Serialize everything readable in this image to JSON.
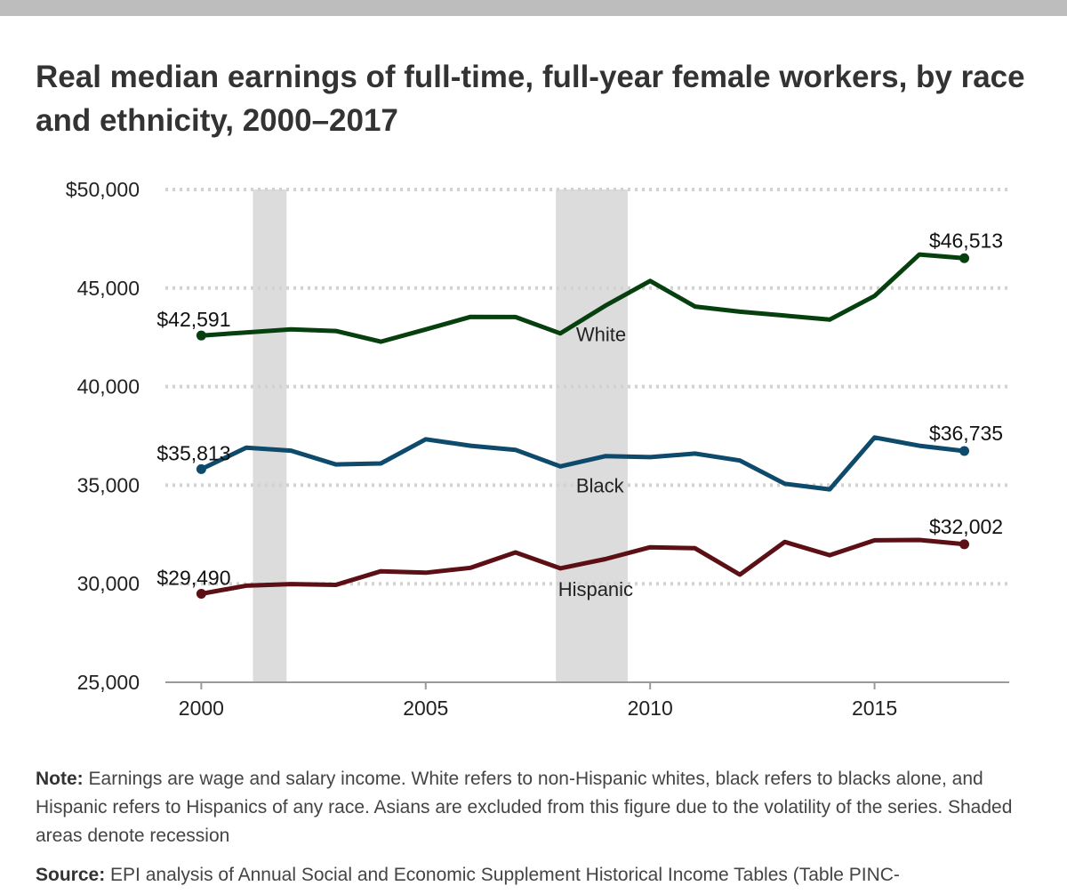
{
  "title": "Real median earnings of full-time, full-year female workers, by race and ethnicity, 2000–2017",
  "note": {
    "label": "Note:",
    "text": "Earnings are wage and salary income. White refers to non-Hispanic whites, black refers to blacks alone, and Hispanic refers to Hispanics of any race. Asians are excluded from this figure due to the volatility of the series. Shaded areas denote recession"
  },
  "source": {
    "label": "Source:",
    "text": "EPI analysis of Annual Social and Economic Supplement Historical Income Tables (Table PINC-"
  },
  "chart_data": {
    "type": "line",
    "title": "Real median earnings of full-time, full-year female workers, by race and ethnicity, 2000–2017",
    "xlabel": "",
    "ylabel": "",
    "x": [
      2000,
      2001,
      2002,
      2003,
      2004,
      2005,
      2006,
      2007,
      2008,
      2009,
      2010,
      2011,
      2012,
      2013,
      2014,
      2015,
      2016,
      2017
    ],
    "xlim": [
      1999.2,
      2018
    ],
    "ylim": [
      25000,
      50000
    ],
    "x_ticks": [
      2000,
      2005,
      2010,
      2015
    ],
    "x_tick_labels": [
      "2000",
      "2005",
      "2010",
      "2015"
    ],
    "y_ticks": [
      25000,
      30000,
      35000,
      40000,
      45000,
      50000
    ],
    "y_tick_labels": [
      "25,000",
      "30,000",
      "35,000",
      "40,000",
      "45,000",
      "$50,000"
    ],
    "grid": true,
    "recessions": [
      [
        2001.15,
        2001.9
      ],
      [
        2007.9,
        2009.5
      ]
    ],
    "series": [
      {
        "name": "White",
        "color": "#07400f",
        "values": [
          42591,
          42750,
          42900,
          42820,
          42280,
          42900,
          43540,
          43530,
          42700,
          44100,
          45360,
          44060,
          43800,
          43600,
          43400,
          44600,
          46700,
          46513
        ],
        "start_label": "$42,591",
        "end_label": "$46,513",
        "name_label_x": 2008.35,
        "name_label_y": 42300
      },
      {
        "name": "Black",
        "color": "#0e4a6b",
        "values": [
          35813,
          36900,
          36750,
          36050,
          36100,
          37330,
          37000,
          36790,
          35950,
          36470,
          36420,
          36600,
          36250,
          35070,
          34790,
          37420,
          37000,
          36735
        ],
        "start_label": "$35,813",
        "end_label": "$36,735",
        "name_label_x": 2008.35,
        "name_label_y": 34630
      },
      {
        "name": "Hispanic",
        "color": "#5c0f14",
        "values": [
          29490,
          29900,
          29980,
          29940,
          30630,
          30560,
          30810,
          31590,
          30780,
          31250,
          31850,
          31800,
          30460,
          32120,
          31450,
          32200,
          32220,
          32002
        ],
        "start_label": "$29,490",
        "end_label": "$32,002",
        "name_label_x": 2007.95,
        "name_label_y": 29380
      }
    ]
  }
}
